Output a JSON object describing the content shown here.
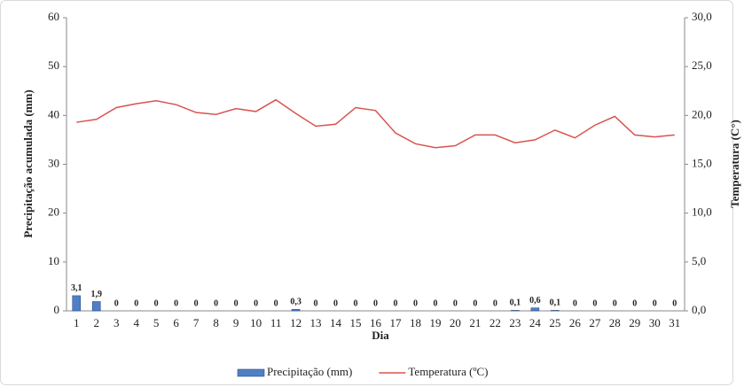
{
  "chart_data": {
    "type": "bar-line",
    "categories": [
      "1",
      "2",
      "3",
      "4",
      "5",
      "6",
      "7",
      "8",
      "9",
      "10",
      "11",
      "12",
      "13",
      "14",
      "15",
      "16",
      "17",
      "18",
      "19",
      "20",
      "21",
      "22",
      "23",
      "24",
      "25",
      "26",
      "27",
      "28",
      "29",
      "30",
      "31"
    ],
    "series": [
      {
        "name": "Precipitação (mm)",
        "color": "#4f7fc6",
        "type": "bar",
        "values": [
          3.1,
          1.9,
          0,
          0,
          0,
          0,
          0,
          0,
          0,
          0,
          0,
          0.3,
          0,
          0,
          0,
          0,
          0,
          0,
          0,
          0,
          0,
          0,
          0.1,
          0.6,
          0.1,
          0,
          0,
          0,
          0,
          0,
          0
        ],
        "value_labels": [
          "3,1",
          "1,9",
          "0",
          "0",
          "0",
          "0",
          "0",
          "0",
          "0",
          "0",
          "0",
          "0,3",
          "0",
          "0",
          "0",
          "0",
          "0",
          "0",
          "0",
          "0",
          "0",
          "0",
          "0,1",
          "0,6",
          "0,1",
          "0",
          "0",
          "0",
          "0",
          "0",
          "0"
        ]
      },
      {
        "name": "Temperatura (ºC)",
        "color": "#d9534f",
        "type": "line",
        "axis": "y2",
        "values": [
          19.3,
          19.6,
          20.8,
          21.2,
          21.5,
          21.1,
          20.3,
          20.1,
          20.7,
          20.4,
          21.6,
          20.2,
          18.9,
          19.1,
          20.8,
          20.5,
          18.2,
          17.1,
          16.7,
          16.9,
          18.0,
          18.0,
          17.2,
          17.5,
          18.5,
          17.7,
          19.0,
          19.9,
          18.0,
          17.8,
          18.0
        ]
      }
    ],
    "xlabel": "Dia",
    "ylabel": "Precipitação acumulada (mm)",
    "y2label": "Temperatura (C°)",
    "ylim": [
      0,
      60
    ],
    "yticks": [
      0,
      10,
      20,
      30,
      40,
      50,
      60
    ],
    "y2lim": [
      0,
      30
    ],
    "y2ticks": [
      {
        "value": 0,
        "label": "0,0"
      },
      {
        "value": 5,
        "label": "5,0"
      },
      {
        "value": 10,
        "label": "10,0"
      },
      {
        "value": 15,
        "label": "15,0"
      },
      {
        "value": 20,
        "label": "20,0"
      },
      {
        "value": 25,
        "label": "25,0"
      },
      {
        "value": 30,
        "label": "30,0"
      }
    ],
    "legend": "bottom"
  }
}
